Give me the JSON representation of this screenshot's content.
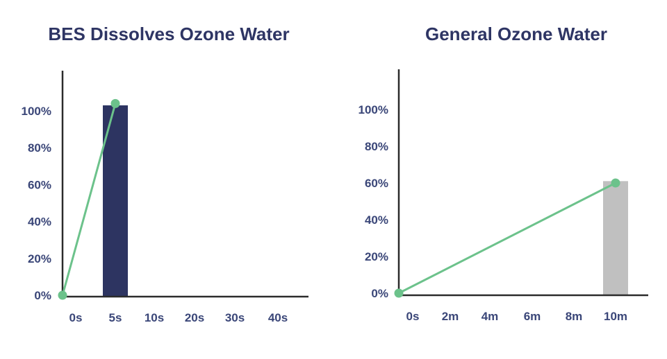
{
  "colors": {
    "title": "#2e3564",
    "tick": "#3a4678",
    "axis": "#2b2b2b",
    "line": "#6cc28b"
  },
  "chart_data": [
    {
      "type": "bar",
      "title": "BES Dissolves Ozone Water",
      "categories": [
        "0s",
        "5s",
        "10s",
        "20s",
        "30s",
        "40s"
      ],
      "y_tick_labels": [
        "0%",
        "20%",
        "40%",
        "60%",
        "80%",
        "100%"
      ],
      "ylim": [
        0,
        120
      ],
      "bars": [
        {
          "category": "5s",
          "value": 103,
          "color": "#2d3461"
        }
      ],
      "line": {
        "color": "#6cc28b",
        "points": [
          {
            "category": "0s",
            "value": 0
          },
          {
            "category": "5s",
            "value": 104
          }
        ]
      }
    },
    {
      "type": "bar",
      "title": "General Ozone Water",
      "categories": [
        "0s",
        "2m",
        "4m",
        "6m",
        "8m",
        "10m"
      ],
      "y_tick_labels": [
        "0%",
        "20%",
        "40%",
        "60%",
        "80%",
        "100%"
      ],
      "ylim": [
        0,
        120
      ],
      "bars": [
        {
          "category": "10m",
          "value": 61,
          "color": "#c0c0c0"
        }
      ],
      "line": {
        "color": "#6cc28b",
        "points": [
          {
            "category": "0s",
            "value": 0
          },
          {
            "category": "10m",
            "value": 60
          }
        ]
      }
    }
  ]
}
